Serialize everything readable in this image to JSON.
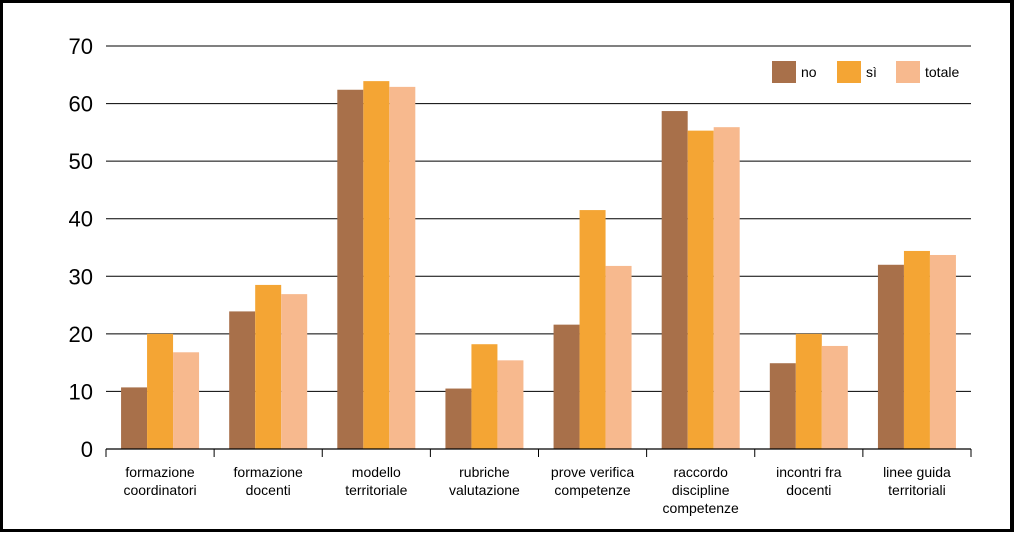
{
  "chart_data": {
    "type": "bar",
    "title": "",
    "xlabel": "",
    "ylabel": "",
    "ylim": [
      0,
      70
    ],
    "yticks": [
      0,
      10,
      20,
      30,
      40,
      50,
      60,
      70
    ],
    "grid": true,
    "legend_position": "top-right",
    "categories": [
      [
        "formazione",
        "coordinatori"
      ],
      [
        "formazione",
        "docenti"
      ],
      [
        "modello",
        "territoriale"
      ],
      [
        "rubriche",
        "valutazione"
      ],
      [
        "prove verifica",
        "competenze"
      ],
      [
        "raccordo",
        "discipline",
        "competenze"
      ],
      [
        "incontri fra",
        "docenti"
      ],
      [
        "linee guida",
        "territoriali"
      ]
    ],
    "series": [
      {
        "name": "no",
        "color": "#a8704a",
        "values": [
          10.7,
          23.9,
          62.4,
          10.5,
          21.6,
          58.7,
          14.9,
          32.0
        ]
      },
      {
        "name": "sì",
        "color": "#f4a534",
        "values": [
          20.0,
          28.5,
          63.9,
          18.2,
          41.5,
          55.3,
          20.0,
          34.4
        ]
      },
      {
        "name": "totale",
        "color": "#f7b98e",
        "values": [
          16.8,
          26.9,
          62.9,
          15.4,
          31.8,
          55.9,
          17.9,
          33.7
        ]
      }
    ]
  }
}
